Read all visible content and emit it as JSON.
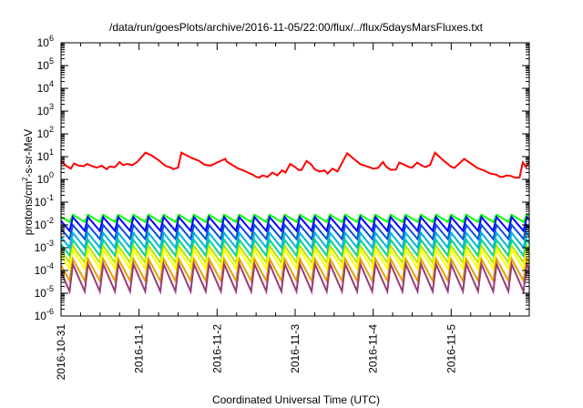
{
  "chart_data": {
    "type": "line",
    "title": "/data/run/goesPlots/archive/2016-11-05/22:00/flux/../flux/5daysMarsFluxes.txt",
    "xlabel": "Coordinated Universal Time (UTC)",
    "ylabel": {
      "base": "protons/cm",
      "sup": "2",
      "rest": "-s-sr-MeV"
    },
    "y_scale": "log",
    "ylim": [
      1e-06,
      1000000.0
    ],
    "xlim": [
      "2016-10-31",
      "2016-11-06"
    ],
    "grid": false,
    "legend": "none",
    "x_ticks": [
      "2016-10-31",
      "2016-11-1",
      "2016-11-2",
      "2016-11-3",
      "2016-11-4",
      "2016-11-5"
    ],
    "y_ticks": [
      {
        "base": "10",
        "exp": "6"
      },
      {
        "base": "10",
        "exp": "5"
      },
      {
        "base": "10",
        "exp": "4"
      },
      {
        "base": "10",
        "exp": "3"
      },
      {
        "base": "10",
        "exp": "2"
      },
      {
        "base": "10",
        "exp": "1"
      },
      {
        "base": "10",
        "exp": "0"
      },
      {
        "base": "10",
        "exp": "-1"
      },
      {
        "base": "10",
        "exp": "-2"
      },
      {
        "base": "10",
        "exp": "-3"
      },
      {
        "base": "10",
        "exp": "-4"
      },
      {
        "base": "10",
        "exp": "-5"
      },
      {
        "base": "10",
        "exp": "-6"
      }
    ],
    "series": [
      {
        "color": "#ff0000",
        "x": [
          "2016-10-31 00:00",
          "2016-10-31 01:30",
          "2016-10-31 03:00",
          "2016-10-31 04:00",
          "2016-10-31 05:30",
          "2016-10-31 07:00",
          "2016-10-31 08:00",
          "2016-10-31 10:00",
          "2016-10-31 11:00",
          "2016-10-31 12:30",
          "2016-10-31 14:00",
          "2016-10-31 15:00",
          "2016-10-31 16:30",
          "2016-10-31 18:00",
          "2016-10-31 19:00",
          "2016-10-31 20:30",
          "2016-10-31 22:00",
          "2016-10-31 23:30",
          "2016-11-01 02:00",
          "2016-11-01 04:00",
          "2016-11-01 06:00",
          "2016-11-01 08:00",
          "2016-11-01 10:00",
          "2016-11-01 10:30",
          "2016-11-01 12:00",
          "2016-11-01 13:00",
          "2016-11-01 16:00",
          "2016-11-01 18:30",
          "2016-11-01 20:00",
          "2016-11-01 22:00",
          "2016-11-02 00:00",
          "2016-11-02 02:30",
          "2016-11-02 03:00",
          "2016-11-02 05:00",
          "2016-11-02 06:30",
          "2016-11-02 08:00",
          "2016-11-02 09:30",
          "2016-11-02 11:00",
          "2016-11-02 12:00",
          "2016-11-02 13:00",
          "2016-11-02 14:00",
          "2016-11-02 15:30",
          "2016-11-02 17:00",
          "2016-11-02 18:30",
          "2016-11-02 20:00",
          "2016-11-02 21:00",
          "2016-11-02 22:30",
          "2016-11-03 00:00",
          "2016-11-03 01:00",
          "2016-11-03 02:00",
          "2016-11-03 03:30",
          "2016-11-03 05:00",
          "2016-11-03 06:00",
          "2016-11-03 07:30",
          "2016-11-03 09:00",
          "2016-11-03 10:00",
          "2016-11-03 11:30",
          "2016-11-03 13:00",
          "2016-11-03 16:00",
          "2016-11-03 18:00",
          "2016-11-03 20:00",
          "2016-11-03 21:30",
          "2016-11-04 00:00",
          "2016-11-04 01:30",
          "2016-11-04 03:00",
          "2016-11-04 04:00",
          "2016-11-04 05:30",
          "2016-11-04 07:00",
          "2016-11-04 08:00",
          "2016-11-04 09:30",
          "2016-11-04 11:00",
          "2016-11-04 12:00",
          "2016-11-04 13:30",
          "2016-11-04 15:00",
          "2016-11-04 16:00",
          "2016-11-04 17:30",
          "2016-11-04 19:00",
          "2016-11-04 21:30",
          "2016-11-05 00:00",
          "2016-11-05 01:00",
          "2016-11-05 04:00",
          "2016-11-05 06:00",
          "2016-11-05 08:00",
          "2016-11-05 10:00",
          "2016-11-05 12:00",
          "2016-11-05 14:00",
          "2016-11-05 15:00",
          "2016-11-05 16:00",
          "2016-11-05 17:00",
          "2016-11-05 18:30",
          "2016-11-05 19:30",
          "2016-11-05 21:00",
          "2016-11-05 22:00",
          "2016-11-05 23:00",
          "2016-11-06 00:00"
        ],
        "y": [
          6.5,
          4,
          3,
          5,
          4,
          3.8,
          4.8,
          3.6,
          3.3,
          4,
          2.8,
          3.7,
          3.4,
          5.8,
          4.3,
          4.8,
          4.2,
          6,
          15,
          11,
          7,
          4,
          3.2,
          2.8,
          3.3,
          15,
          9,
          6.5,
          4.5,
          4,
          5.5,
          8,
          6,
          4,
          3,
          2.5,
          2,
          1.6,
          1.3,
          1.2,
          1.5,
          1.3,
          2,
          1.5,
          2.5,
          2,
          4.8,
          3.5,
          2.6,
          2.6,
          6.5,
          4.5,
          2.8,
          2.2,
          2.5,
          1.8,
          3,
          2.2,
          14,
          8,
          4.7,
          4,
          3,
          3.2,
          5.8,
          3.6,
          2.6,
          2.7,
          5.5,
          4.5,
          3.5,
          3.3,
          5.5,
          4,
          3.5,
          4.3,
          15,
          7,
          3.6,
          3.2,
          8,
          5,
          3.2,
          2.5,
          1.8,
          1.6,
          1.3,
          1.3,
          1.5,
          1.4,
          1.2,
          1.2,
          5.5,
          3.6,
          6
        ]
      },
      {
        "color": "#00ff00",
        "base": 0.0135,
        "peak": 0.028,
        "cycles": 32
      },
      {
        "color": "#0000ff",
        "base": 0.0055,
        "peak": 0.022,
        "cycles": 32
      },
      {
        "color": "#0050dc",
        "base": 0.0024,
        "peak": 0.01,
        "cycles": 32
      },
      {
        "color": "#00b4dc",
        "base": 0.001,
        "peak": 0.0045,
        "cycles": 32
      },
      {
        "color": "#00d296",
        "base": 0.00045,
        "peak": 0.0022,
        "cycles": 32
      },
      {
        "color": "#b4e600",
        "base": 0.00022,
        "peak": 0.0012,
        "cycles": 32
      },
      {
        "color": "#ffff00",
        "base": 0.00012,
        "peak": 0.0008,
        "cycles": 32
      },
      {
        "color": "#e6a000",
        "base": 3.5e-05,
        "peak": 0.00032,
        "cycles": 32
      },
      {
        "color": "#963c78",
        "base": 1.2e-05,
        "peak": 0.00019,
        "cycles": 32
      }
    ]
  }
}
